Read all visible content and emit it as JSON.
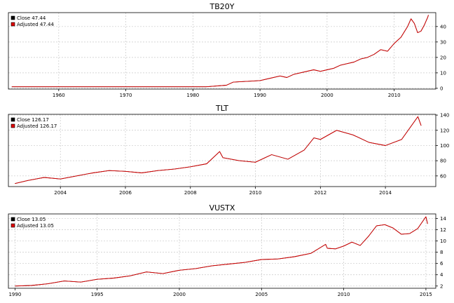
{
  "chart_data": [
    {
      "type": "line",
      "title": "TB20Y",
      "x_range": [
        1952.5,
        2016.2
      ],
      "y_range": [
        -0.5,
        49
      ],
      "x_ticks": [
        1960,
        1970,
        1980,
        1990,
        2000,
        2010
      ],
      "y_ticks": [
        0,
        10,
        20,
        30,
        40
      ],
      "grid": true,
      "legend_position": "top-left",
      "legend": [
        "Close 47.44",
        "Adjusted 47.44"
      ],
      "series": [
        {
          "name": "Close",
          "color": "#000000",
          "x": [
            1953,
            1960,
            1965,
            1970,
            1975,
            1980,
            1982,
            1985,
            1986,
            1990,
            1993,
            1994,
            1995,
            1998,
            1999,
            2000,
            2001,
            2002,
            2003,
            2004,
            2005,
            2006,
            2007,
            2008,
            2009,
            2010,
            2011,
            2012,
            2012.5,
            2013,
            2013.5,
            2014,
            2014.5,
            2015,
            2015.1
          ],
          "y": [
            1,
            1,
            1,
            1,
            1,
            1,
            1,
            2,
            4,
            5,
            8,
            7,
            9,
            12,
            11,
            12,
            13,
            15,
            16,
            17,
            19,
            20,
            22,
            25,
            24,
            29,
            33,
            40,
            45,
            42,
            36,
            37,
            41,
            46,
            47.44
          ]
        },
        {
          "name": "Adjusted",
          "color": "#e00000",
          "x": [
            1953,
            1960,
            1965,
            1970,
            1975,
            1980,
            1982,
            1985,
            1986,
            1990,
            1993,
            1994,
            1995,
            1998,
            1999,
            2000,
            2001,
            2002,
            2003,
            2004,
            2005,
            2006,
            2007,
            2008,
            2009,
            2010,
            2011,
            2012,
            2012.5,
            2013,
            2013.5,
            2014,
            2014.5,
            2015,
            2015.1
          ],
          "y": [
            1,
            1,
            1,
            1,
            1,
            1,
            1,
            2,
            4,
            5,
            8,
            7,
            9,
            12,
            11,
            12,
            13,
            15,
            16,
            17,
            19,
            20,
            22,
            25,
            24,
            29,
            33,
            40,
            45,
            42,
            36,
            37,
            41,
            46,
            47.44
          ]
        }
      ]
    },
    {
      "type": "line",
      "title": "TLT",
      "x_range": [
        2002.4,
        2015.55
      ],
      "y_range": [
        46,
        141
      ],
      "x_ticks": [
        2004,
        2006,
        2008,
        2010,
        2012,
        2014
      ],
      "y_ticks": [
        60,
        80,
        100,
        120,
        140
      ],
      "grid": true,
      "legend_position": "top-left",
      "legend": [
        "Close 126.17",
        "Adjusted 126.17"
      ],
      "series": [
        {
          "name": "Close",
          "color": "#000000",
          "x": [
            2002.6,
            2003,
            2003.5,
            2004,
            2004.5,
            2005,
            2005.5,
            2006,
            2006.5,
            2007,
            2007.5,
            2008,
            2008.5,
            2008.9,
            2009,
            2009.5,
            2010,
            2010.5,
            2011,
            2011.5,
            2011.8,
            2012,
            2012.5,
            2013,
            2013.5,
            2014,
            2014.5,
            2015,
            2015.1
          ],
          "y": [
            50,
            54,
            58,
            56,
            60,
            64,
            67,
            66,
            64,
            67,
            69,
            72,
            76,
            92,
            84,
            80,
            78,
            88,
            82,
            94,
            110,
            108,
            120,
            114,
            104,
            100,
            108,
            138,
            126.17
          ]
        },
        {
          "name": "Adjusted",
          "color": "#e00000",
          "x": [
            2002.6,
            2003,
            2003.5,
            2004,
            2004.5,
            2005,
            2005.5,
            2006,
            2006.5,
            2007,
            2007.5,
            2008,
            2008.5,
            2008.9,
            2009,
            2009.5,
            2010,
            2010.5,
            2011,
            2011.5,
            2011.8,
            2012,
            2012.5,
            2013,
            2013.5,
            2014,
            2014.5,
            2015,
            2015.1
          ],
          "y": [
            50,
            54,
            58,
            56,
            60,
            64,
            67,
            66,
            64,
            67,
            69,
            72,
            76,
            92,
            84,
            80,
            78,
            88,
            82,
            94,
            110,
            108,
            120,
            114,
            104,
            100,
            108,
            138,
            126.17
          ]
        }
      ]
    },
    {
      "type": "line",
      "title": "VUSTX",
      "x_range": [
        1989.6,
        2015.6
      ],
      "y_range": [
        1.6,
        14.8
      ],
      "x_ticks": [
        1990,
        1995,
        2000,
        2005,
        2010,
        2015
      ],
      "y_ticks": [
        2,
        4,
        6,
        8,
        10,
        12,
        14
      ],
      "grid": true,
      "legend_position": "top-left",
      "legend": [
        "Close 13.05",
        "Adjusted 13.05"
      ],
      "series": [
        {
          "name": "Close",
          "color": "#000000",
          "x": [
            1990,
            1991,
            1992,
            1993,
            1994,
            1995,
            1996,
            1997,
            1998,
            1999,
            2000,
            2001,
            2002,
            2003,
            2004,
            2005,
            2006,
            2007,
            2008,
            2008.9,
            2009,
            2009.5,
            2010,
            2010.5,
            2011,
            2011.5,
            2012,
            2012.5,
            2013,
            2013.5,
            2014,
            2014.5,
            2015,
            2015.1
          ],
          "y": [
            2,
            2.1,
            2.4,
            2.9,
            2.7,
            3.2,
            3.4,
            3.8,
            4.5,
            4.2,
            4.8,
            5.1,
            5.6,
            5.9,
            6.2,
            6.7,
            6.8,
            7.2,
            7.8,
            9.4,
            8.7,
            8.6,
            9.1,
            9.8,
            9.2,
            10.8,
            12.7,
            12.9,
            12.3,
            11.2,
            11.3,
            12.2,
            14.3,
            13.05
          ]
        },
        {
          "name": "Adjusted",
          "color": "#e00000",
          "x": [
            1990,
            1991,
            1992,
            1993,
            1994,
            1995,
            1996,
            1997,
            1998,
            1999,
            2000,
            2001,
            2002,
            2003,
            2004,
            2005,
            2006,
            2007,
            2008,
            2008.9,
            2009,
            2009.5,
            2010,
            2010.5,
            2011,
            2011.5,
            2012,
            2012.5,
            2013,
            2013.5,
            2014,
            2014.5,
            2015,
            2015.1
          ],
          "y": [
            2,
            2.1,
            2.4,
            2.9,
            2.7,
            3.2,
            3.4,
            3.8,
            4.5,
            4.2,
            4.8,
            5.1,
            5.6,
            5.9,
            6.2,
            6.7,
            6.8,
            7.2,
            7.8,
            9.4,
            8.7,
            8.6,
            9.1,
            9.8,
            9.2,
            10.8,
            12.7,
            12.9,
            12.3,
            11.2,
            11.3,
            12.2,
            14.3,
            13.05
          ]
        }
      ]
    }
  ]
}
